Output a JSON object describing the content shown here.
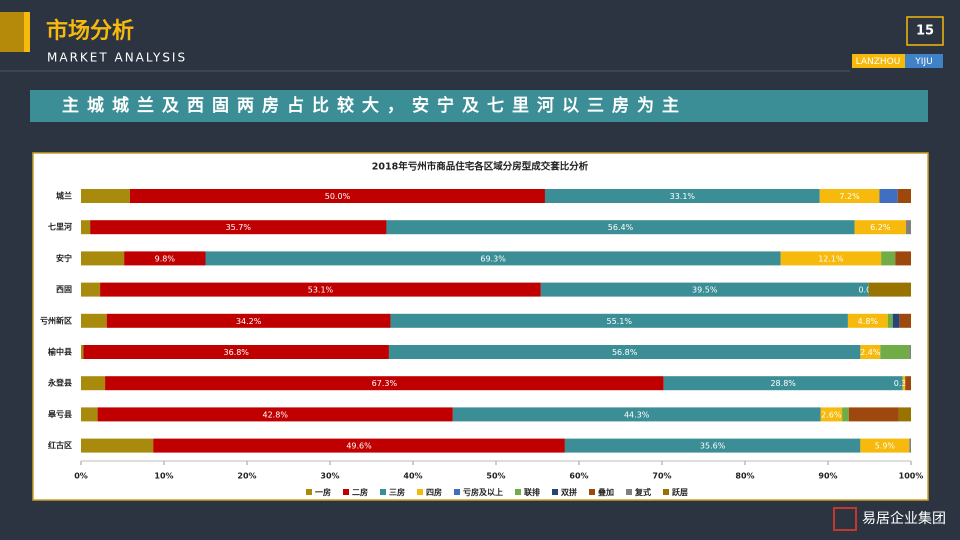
{
  "slide": {
    "title": "市场分析",
    "subtitle": "MARKET ANALYSIS",
    "page_number": "15",
    "city": "LANZHOU",
    "brand": "YIJU",
    "headline": "主城城兰及西固两房占比较大，安宁及七里河以三房为主",
    "logo": "易居企业集团"
  },
  "chart_data": {
    "type": "stacked-bar-horizontal",
    "title": "2018年亏州市商品住宅各区域分房型成交套比分析",
    "categories": [
      "城兰",
      "七里河",
      "安宁",
      "西固",
      "亏州新区",
      "榆中县",
      "永登县",
      "皋亏县",
      "红古区"
    ],
    "xlim": [
      0,
      100
    ],
    "xticks": [
      {
        "value": 0,
        "label": "0%"
      },
      {
        "value": 10,
        "label": "10%"
      },
      {
        "value": 20,
        "label": "20%"
      },
      {
        "value": 30,
        "label": "30%"
      },
      {
        "value": 40,
        "label": "40%"
      },
      {
        "value": 50,
        "label": "50%"
      },
      {
        "value": 60,
        "label": "60%"
      },
      {
        "value": 70,
        "label": "70%"
      },
      {
        "value": 80,
        "label": "80%"
      },
      {
        "value": 90,
        "label": "90%"
      },
      {
        "value": 100,
        "label": "100%"
      }
    ],
    "series": [
      {
        "name": "一房",
        "color": "#a88a0c",
        "values": [
          5.9,
          1.1,
          5.2,
          2.3,
          3.1,
          0.3,
          2.9,
          2.0,
          8.7
        ]
      },
      {
        "name": "二房",
        "color": "#c00000",
        "values": [
          50.0,
          35.7,
          9.8,
          53.1,
          34.2,
          36.8,
          67.3,
          42.8,
          49.6
        ],
        "value_labels": [
          "50.0%",
          "35.7%",
          "9.8%",
          "53.1%",
          "34.2%",
          "36.8%",
          "67.3%",
          "42.8%",
          "49.6%"
        ]
      },
      {
        "name": "三房",
        "color": "#3b8e95",
        "values": [
          33.1,
          56.4,
          69.3,
          39.5,
          55.1,
          56.8,
          28.8,
          44.3,
          35.6
        ],
        "value_labels": [
          "33.1%",
          "56.4%",
          "69.3%",
          "39.5%",
          "55.1%",
          "56.8%",
          "28.8%",
          "44.3%",
          "35.6%"
        ]
      },
      {
        "name": "四房",
        "color": "#f6b90c",
        "values": [
          7.2,
          6.2,
          12.1,
          0.0,
          4.8,
          2.4,
          0.3,
          2.6,
          5.9
        ],
        "value_labels": [
          "7.2%",
          "6.2%",
          "12.1%",
          "0.0%",
          "4.8%",
          "2.4%",
          "0.3%",
          "2.6%",
          "5.9%"
        ]
      },
      {
        "name": "亏房及以上",
        "color": "#3f6fc0",
        "values": [
          2.2,
          null,
          null,
          null,
          null,
          null,
          null,
          null,
          null
        ]
      },
      {
        "name": "联排",
        "color": "#70ad47",
        "values": [
          null,
          null,
          1.7,
          null,
          0.6,
          3.5,
          null,
          0.8,
          null
        ]
      },
      {
        "name": "双拼",
        "color": "#264478",
        "values": [
          null,
          null,
          null,
          null,
          0.8,
          null,
          null,
          null,
          null
        ]
      },
      {
        "name": "叠加",
        "color": "#9e480e",
        "values": [
          1.6,
          null,
          1.9,
          null,
          1.4,
          null,
          0.7,
          6.0,
          null
        ]
      },
      {
        "name": "复式",
        "color": "#7f7f7f",
        "values": [
          null,
          0.6,
          null,
          null,
          null,
          0.2,
          null,
          null,
          0.2
        ]
      },
      {
        "name": "跃层",
        "color": "#997300",
        "values": [
          null,
          null,
          null,
          5.1,
          null,
          null,
          null,
          1.5,
          null
        ]
      }
    ]
  }
}
